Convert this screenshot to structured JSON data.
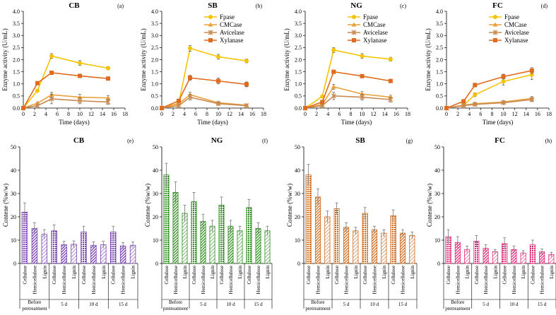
{
  "colors": {
    "fpase": "#f5c400",
    "cmcase": "#e8a23c",
    "avicelase": "#c98a52",
    "xylanase": "#e06a1e",
    "cb_bar": "#7a3fb2",
    "ng_bar": "#2f8f1f",
    "sb_bar": "#d06a1c",
    "fc_bar": "#e6287a"
  },
  "chart_data": [
    {
      "type": "line",
      "id": "CB",
      "title": "CB",
      "panel_label": "(a)",
      "xlabel": "Time (days)",
      "ylabel": "Enzyme activity (U/mL)",
      "xlim": [
        0,
        18
      ],
      "ylim": [
        0,
        4.0
      ],
      "xticks": [
        "0",
        "2",
        "4",
        "6",
        "8",
        "10",
        "12",
        "14",
        "16",
        "18"
      ],
      "yticks": [
        "0.0",
        "0.5",
        "1.0",
        "1.5",
        "2.0",
        "2.5",
        "3.0",
        "3.5",
        "4.0"
      ],
      "x": [
        0,
        2.5,
        5,
        10,
        15
      ],
      "show_legend": false,
      "series": [
        {
          "name": "Fpase",
          "values": [
            0.0,
            0.72,
            2.15,
            1.86,
            1.65
          ],
          "errors": [
            0.02,
            0.05,
            0.1,
            0.1,
            0.07
          ]
        },
        {
          "name": "CMCase",
          "values": [
            0.0,
            0.2,
            0.55,
            0.45,
            0.42
          ],
          "errors": [
            0.02,
            0.05,
            0.1,
            0.12,
            0.1
          ]
        },
        {
          "name": "Avicelase",
          "values": [
            0.0,
            0.1,
            0.38,
            0.3,
            0.25
          ],
          "errors": [
            0.02,
            0.05,
            0.2,
            0.12,
            0.1
          ]
        },
        {
          "name": "Xylanase",
          "values": [
            0.0,
            1.03,
            1.46,
            1.33,
            1.22
          ],
          "errors": [
            0.02,
            0.05,
            0.05,
            0.05,
            0.05
          ]
        }
      ]
    },
    {
      "type": "line",
      "id": "SB",
      "title": "SB",
      "panel_label": "(b)",
      "xlabel": "Time (days)",
      "ylabel": "Enzyme activity (U/mL)",
      "xlim": [
        0,
        18
      ],
      "ylim": [
        0,
        4.0
      ],
      "xticks": [
        "0",
        "2",
        "4",
        "6",
        "8",
        "10",
        "12",
        "14",
        "16",
        "18"
      ],
      "yticks": [
        "0.0",
        "0.5",
        "1.0",
        "1.5",
        "2.0",
        "2.5",
        "3.0",
        "3.5",
        "4.0"
      ],
      "x": [
        0,
        3,
        5,
        10,
        15
      ],
      "show_legend": true,
      "series": [
        {
          "name": "Fpase",
          "values": [
            0.0,
            0.2,
            2.47,
            2.12,
            1.95
          ],
          "errors": [
            0.02,
            0.05,
            0.12,
            0.1,
            0.08
          ]
        },
        {
          "name": "CMCase",
          "values": [
            0.0,
            0.18,
            0.55,
            0.22,
            0.12
          ],
          "errors": [
            0.02,
            0.05,
            0.1,
            0.05,
            0.04
          ]
        },
        {
          "name": "Avicelase",
          "values": [
            0.0,
            0.1,
            0.45,
            0.18,
            0.1
          ],
          "errors": [
            0.02,
            0.05,
            0.12,
            0.05,
            0.04
          ]
        },
        {
          "name": "Xylanase",
          "values": [
            0.0,
            0.3,
            1.25,
            1.12,
            0.98
          ],
          "errors": [
            0.02,
            0.05,
            0.1,
            0.12,
            0.1
          ]
        }
      ]
    },
    {
      "type": "line",
      "id": "NG",
      "title": "NG",
      "panel_label": "(c)",
      "xlabel": "Time (days)",
      "ylabel": "Enzyme activity (U/mL)",
      "xlim": [
        0,
        18
      ],
      "ylim": [
        0,
        4.0
      ],
      "xticks": [
        "0",
        "2",
        "4",
        "6",
        "8",
        "10",
        "12",
        "14",
        "16",
        "18"
      ],
      "yticks": [
        "0.0",
        "0.5",
        "1.0",
        "1.5",
        "2.0",
        "2.5",
        "3.0",
        "3.5",
        "4.0"
      ],
      "x": [
        0,
        3,
        5,
        10,
        15
      ],
      "show_legend": true,
      "series": [
        {
          "name": "Fpase",
          "values": [
            0.0,
            0.48,
            2.4,
            2.15,
            2.02
          ],
          "errors": [
            0.02,
            0.05,
            0.1,
            0.1,
            0.08
          ]
        },
        {
          "name": "CMCase",
          "values": [
            0.0,
            0.15,
            0.88,
            0.58,
            0.45
          ],
          "errors": [
            0.02,
            0.05,
            0.1,
            0.1,
            0.08
          ]
        },
        {
          "name": "Avicelase",
          "values": [
            0.0,
            0.1,
            0.5,
            0.45,
            0.35
          ],
          "errors": [
            0.02,
            0.05,
            0.15,
            0.12,
            0.1
          ]
        },
        {
          "name": "Xylanase",
          "values": [
            0.0,
            0.25,
            1.5,
            1.32,
            1.12
          ],
          "errors": [
            0.02,
            0.05,
            0.06,
            0.05,
            0.05
          ]
        }
      ]
    },
    {
      "type": "line",
      "id": "FC",
      "title": "FC",
      "panel_label": "(d)",
      "xlabel": "Time (days)",
      "ylabel": "Enzyme activity (U/mL)",
      "xlim": [
        0,
        18
      ],
      "ylim": [
        0,
        4.0
      ],
      "xticks": [
        "0",
        "2",
        "4",
        "6",
        "8",
        "10",
        "12",
        "14",
        "16",
        "18"
      ],
      "yticks": [
        "0.0",
        "0.5",
        "1.0",
        "1.5",
        "2.0",
        "2.5",
        "3.0",
        "3.5",
        "4.0"
      ],
      "x": [
        0,
        3,
        5,
        10,
        15
      ],
      "show_legend": true,
      "series": [
        {
          "name": "Fpase",
          "values": [
            0.0,
            0.12,
            0.55,
            1.1,
            1.38
          ],
          "errors": [
            0.02,
            0.05,
            0.08,
            0.15,
            0.2
          ]
        },
        {
          "name": "CMCase",
          "values": [
            0.0,
            0.12,
            0.18,
            0.25,
            0.4
          ],
          "errors": [
            0.02,
            0.04,
            0.05,
            0.05,
            0.08
          ]
        },
        {
          "name": "Avicelase",
          "values": [
            0.0,
            0.1,
            0.15,
            0.22,
            0.35
          ],
          "errors": [
            0.02,
            0.04,
            0.05,
            0.05,
            0.08
          ]
        },
        {
          "name": "Xylanase",
          "values": [
            0.0,
            0.28,
            0.95,
            1.3,
            1.55
          ],
          "errors": [
            0.02,
            0.05,
            0.08,
            0.1,
            0.12
          ]
        }
      ]
    },
    {
      "type": "bar",
      "id": "CB-bars",
      "title": "CB",
      "panel_label": "(e)",
      "ylabel": "Contene (%w/w)",
      "ylim": [
        0,
        50
      ],
      "yticks": [
        "0",
        "10",
        "20",
        "30",
        "40",
        "50"
      ],
      "categories": [
        "Cellulose",
        "Hemicellulose",
        "Lignin",
        "Cellulose",
        "Hemicellulose",
        "Lignin",
        "Cellulose",
        "Hemicellulose",
        "Lignin",
        "Cellulose",
        "Hemicellulose",
        "Lignin"
      ],
      "groups": [
        "Before pretreatment",
        "5 d",
        "10 d",
        "15 d"
      ],
      "values": [
        22,
        15,
        12.5,
        14,
        8,
        8.2,
        13.5,
        7.8,
        8,
        13.5,
        7.5,
        7.8
      ],
      "errors": [
        4,
        2.5,
        2,
        2.5,
        1.5,
        1.5,
        2.5,
        1.5,
        1.5,
        2.5,
        1.5,
        1.5
      ]
    },
    {
      "type": "bar",
      "id": "NG-bars",
      "title": "NG",
      "panel_label": "(f)",
      "ylabel": "Contene (%w/w)",
      "ylim": [
        0,
        50
      ],
      "yticks": [
        "0",
        "10",
        "20",
        "30",
        "40",
        "50"
      ],
      "categories": [
        "Cellulose",
        "Hemicellulose",
        "Lignin",
        "Cellulose",
        "Hemicellulose",
        "Lignin",
        "Cellulose",
        "Hemicellulose",
        "Lignin",
        "Cellulose",
        "Hemicellulose",
        "Lignin"
      ],
      "groups": [
        "Before pretreatment",
        "5 d",
        "10 d",
        "15 d"
      ],
      "values": [
        38,
        30.5,
        21.5,
        26.5,
        18,
        16,
        25,
        16,
        14,
        24,
        15,
        14
      ],
      "errors": [
        5,
        4.5,
        3.5,
        4,
        3,
        2.5,
        3.5,
        2.5,
        2,
        3.5,
        2.5,
        2
      ]
    },
    {
      "type": "bar",
      "id": "SB-bars",
      "title": "SB",
      "panel_label": "(g)",
      "ylabel": "Contene (%w/w)",
      "ylim": [
        0,
        50
      ],
      "yticks": [
        "0",
        "10",
        "20",
        "30",
        "40",
        "50"
      ],
      "categories": [
        "Cellulose",
        "Hemicellulose",
        "Lignin",
        "Cellulose",
        "Hemicellulose",
        "Lignin",
        "Cellulose",
        "Hemicellulose",
        "Lignin",
        "Cellulose",
        "Hemicellulose",
        "Lignin"
      ],
      "groups": [
        "Before pretreatment",
        "5 d",
        "10 d",
        "15 d"
      ],
      "values": [
        38,
        28.5,
        20,
        23.5,
        15.5,
        14,
        21.5,
        14.5,
        13,
        20.5,
        13,
        12
      ],
      "errors": [
        4.5,
        3.5,
        2.5,
        2.5,
        2,
        1.5,
        2.5,
        1.5,
        1.5,
        2.5,
        1.5,
        1.5
      ]
    },
    {
      "type": "bar",
      "id": "FC-bars",
      "title": "FC",
      "panel_label": "(h)",
      "ylabel": "Contene (%w/w)",
      "ylim": [
        0,
        50
      ],
      "yticks": [
        "0",
        "10",
        "20",
        "30",
        "40",
        "50"
      ],
      "categories": [
        "Cellulose",
        "Hemicellulose",
        "Lignin",
        "Cellulose",
        "Hemicellulose",
        "Lignin",
        "Cellulose",
        "Hemicellulose",
        "Lignin",
        "Cellulose",
        "Hemicellulose",
        "Lignin"
      ],
      "groups": [
        "Before pretreatment",
        "5 d",
        "10 d",
        "15 d"
      ],
      "values": [
        11.5,
        9,
        6,
        9.5,
        6.5,
        5,
        8.5,
        6,
        4.5,
        8,
        5,
        3.8
      ],
      "errors": [
        3,
        2.5,
        1.5,
        2.5,
        1.5,
        1,
        2.5,
        1.5,
        1,
        2,
        1.2,
        1
      ]
    }
  ]
}
